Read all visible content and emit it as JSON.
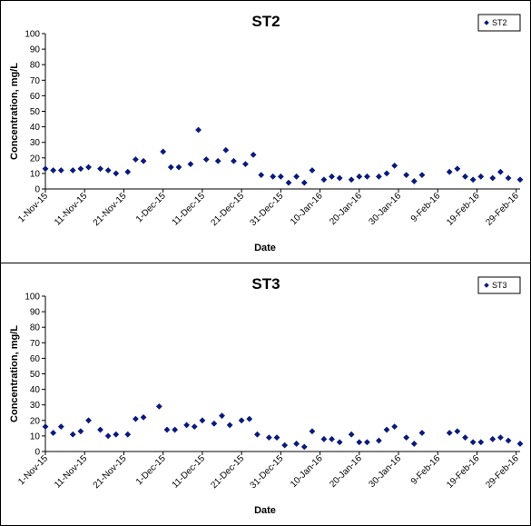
{
  "colors": {
    "marker": "#0a1a7a",
    "axis": "#000000",
    "background": "#ffffff"
  },
  "chart_data": [
    {
      "type": "scatter",
      "title": "ST2",
      "xlabel": "Date",
      "ylabel": "Concentration, mg/L",
      "ylim": [
        0,
        100
      ],
      "yticks": [
        0,
        10,
        20,
        30,
        40,
        50,
        60,
        70,
        80,
        90,
        100
      ],
      "xlim": [
        "2015-11-01",
        "2016-03-01"
      ],
      "xtick_labels": [
        "1-Nov-15",
        "11-Nov-15",
        "21-Nov-15",
        "1-Dec-15",
        "11-Dec-15",
        "21-Dec-15",
        "31-Dec-15",
        "10-Jan-16",
        "20-Jan-16",
        "30-Jan-16",
        "9-Feb-16",
        "19-Feb-16",
        "29-Feb-16"
      ],
      "xtick_dates": [
        "2015-11-01",
        "2015-11-11",
        "2015-11-21",
        "2015-12-01",
        "2015-12-11",
        "2015-12-21",
        "2015-12-31",
        "2016-01-10",
        "2016-01-20",
        "2016-01-30",
        "2016-02-09",
        "2016-02-19",
        "2016-02-29"
      ],
      "grid": false,
      "legend": "top-right",
      "series": [
        {
          "name": "ST2",
          "marker": "diamond",
          "x": [
            "2015-11-01",
            "2015-11-03",
            "2015-11-05",
            "2015-11-08",
            "2015-11-10",
            "2015-11-12",
            "2015-11-15",
            "2015-11-17",
            "2015-11-19",
            "2015-11-22",
            "2015-11-24",
            "2015-11-26",
            "2015-12-01",
            "2015-12-03",
            "2015-12-05",
            "2015-12-08",
            "2015-12-10",
            "2015-12-12",
            "2015-12-15",
            "2015-12-17",
            "2015-12-19",
            "2015-12-22",
            "2015-12-24",
            "2015-12-26",
            "2015-12-29",
            "2015-12-31",
            "2016-01-02",
            "2016-01-04",
            "2016-01-06",
            "2016-01-08",
            "2016-01-11",
            "2016-01-13",
            "2016-01-15",
            "2016-01-18",
            "2016-01-20",
            "2016-01-22",
            "2016-01-25",
            "2016-01-27",
            "2016-01-29",
            "2016-02-01",
            "2016-02-03",
            "2016-02-05",
            "2016-02-12",
            "2016-02-14",
            "2016-02-16",
            "2016-02-18",
            "2016-02-20",
            "2016-02-23",
            "2016-02-25",
            "2016-02-27",
            "2016-03-01"
          ],
          "y": [
            13,
            12,
            12,
            12,
            13,
            14,
            13,
            12,
            10,
            11,
            19,
            18,
            24,
            14,
            14,
            16,
            38,
            19,
            18,
            25,
            18,
            16,
            22,
            9,
            8,
            8,
            4,
            8,
            4,
            12,
            6,
            8,
            7,
            6,
            8,
            8,
            8,
            10,
            15,
            9,
            5,
            9,
            11,
            13,
            8,
            6,
            8,
            7,
            11,
            7,
            6
          ]
        }
      ]
    },
    {
      "type": "scatter",
      "title": "ST3",
      "xlabel": "Date",
      "ylabel": "Concentration, mg/L",
      "ylim": [
        0,
        100
      ],
      "yticks": [
        0,
        10,
        20,
        30,
        40,
        50,
        60,
        70,
        80,
        90,
        100
      ],
      "xlim": [
        "2015-11-01",
        "2016-03-01"
      ],
      "xtick_labels": [
        "1-Nov-15",
        "11-Nov-15",
        "21-Nov-15",
        "1-Dec-15",
        "11-Dec-15",
        "21-Dec-15",
        "31-Dec-15",
        "10-Jan-16",
        "20-Jan-16",
        "30-Jan-16",
        "9-Feb-16",
        "19-Feb-16",
        "29-Feb-16"
      ],
      "xtick_dates": [
        "2015-11-01",
        "2015-11-11",
        "2015-11-21",
        "2015-12-01",
        "2015-12-11",
        "2015-12-21",
        "2015-12-31",
        "2016-01-10",
        "2016-01-20",
        "2016-01-30",
        "2016-02-09",
        "2016-02-19",
        "2016-02-29"
      ],
      "grid": false,
      "legend": "top-right",
      "series": [
        {
          "name": "ST3",
          "marker": "diamond",
          "x": [
            "2015-11-01",
            "2015-11-03",
            "2015-11-05",
            "2015-11-08",
            "2015-11-10",
            "2015-11-12",
            "2015-11-15",
            "2015-11-17",
            "2015-11-19",
            "2015-11-22",
            "2015-11-24",
            "2015-11-26",
            "2015-11-30",
            "2015-12-02",
            "2015-12-04",
            "2015-12-07",
            "2015-12-09",
            "2015-12-11",
            "2015-12-14",
            "2015-12-16",
            "2015-12-18",
            "2015-12-21",
            "2015-12-23",
            "2015-12-25",
            "2015-12-28",
            "2015-12-30",
            "2016-01-01",
            "2016-01-04",
            "2016-01-06",
            "2016-01-08",
            "2016-01-11",
            "2016-01-13",
            "2016-01-15",
            "2016-01-18",
            "2016-01-20",
            "2016-01-22",
            "2016-01-25",
            "2016-01-27",
            "2016-01-29",
            "2016-02-01",
            "2016-02-03",
            "2016-02-05",
            "2016-02-12",
            "2016-02-14",
            "2016-02-16",
            "2016-02-18",
            "2016-02-20",
            "2016-02-23",
            "2016-02-25",
            "2016-02-27",
            "2016-03-01"
          ],
          "y": [
            16,
            12,
            16,
            11,
            13,
            20,
            14,
            10,
            11,
            11,
            21,
            22,
            29,
            14,
            14,
            17,
            16,
            20,
            18,
            23,
            17,
            20,
            21,
            11,
            9,
            9,
            4,
            5,
            3,
            13,
            8,
            8,
            6,
            11,
            6,
            6,
            7,
            14,
            16,
            9,
            5,
            12,
            12,
            13,
            9,
            6,
            6,
            8,
            9,
            7,
            5
          ]
        }
      ]
    }
  ]
}
